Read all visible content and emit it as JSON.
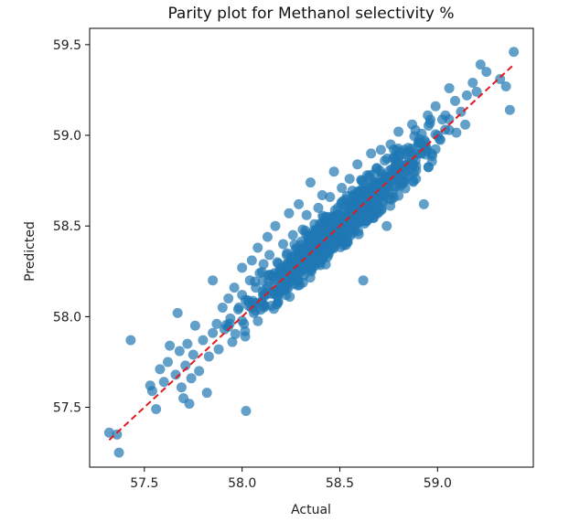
{
  "chart_data": {
    "type": "scatter",
    "title": "Parity plot for Methanol selectivity %",
    "xlabel": "Actual",
    "ylabel": "Predicted",
    "xlim": [
      57.22,
      59.49
    ],
    "ylim": [
      57.17,
      59.59
    ],
    "xticks": [
      57.5,
      58.0,
      58.5,
      59.0
    ],
    "xtick_labels": [
      "57.5",
      "58.0",
      "58.5",
      "59.0"
    ],
    "yticks": [
      57.5,
      58.0,
      58.5,
      59.0,
      59.5
    ],
    "ytick_labels": [
      "57.5",
      "58.0",
      "58.5",
      "59.0",
      "59.5"
    ],
    "grid": false,
    "legend": "none",
    "marker_color": "#1f77b4",
    "marker_opacity": 0.7,
    "parity_line": {
      "color": "#e31a1c",
      "style": "dashed",
      "from": [
        57.32,
        57.32
      ],
      "to": [
        59.39,
        59.39
      ]
    },
    "series": [
      {
        "points": [
          [
            57.32,
            57.36
          ],
          [
            57.36,
            57.35
          ],
          [
            57.37,
            57.25
          ],
          [
            57.43,
            57.87
          ],
          [
            57.53,
            57.62
          ],
          [
            57.54,
            57.59
          ],
          [
            57.56,
            57.49
          ],
          [
            57.58,
            57.71
          ],
          [
            57.6,
            57.64
          ],
          [
            57.62,
            57.75
          ],
          [
            57.63,
            57.84
          ],
          [
            57.66,
            57.68
          ],
          [
            57.67,
            58.02
          ],
          [
            57.68,
            57.81
          ],
          [
            57.69,
            57.61
          ],
          [
            57.7,
            57.55
          ],
          [
            57.71,
            57.73
          ],
          [
            57.72,
            57.85
          ],
          [
            57.73,
            57.52
          ],
          [
            57.74,
            57.66
          ],
          [
            57.75,
            57.79
          ],
          [
            57.76,
            57.95
          ],
          [
            57.78,
            57.7
          ],
          [
            57.8,
            57.87
          ],
          [
            57.82,
            57.58
          ],
          [
            57.83,
            57.78
          ],
          [
            57.85,
            57.91
          ],
          [
            57.85,
            58.2
          ],
          [
            57.87,
            57.96
          ],
          [
            57.88,
            57.82
          ],
          [
            57.9,
            58.05
          ],
          [
            57.91,
            57.93
          ],
          [
            57.93,
            58.1
          ],
          [
            57.94,
            57.99
          ],
          [
            57.95,
            57.86
          ],
          [
            57.96,
            58.16
          ],
          [
            57.98,
            58.04
          ],
          [
            58.0,
            58.12
          ],
          [
            58.0,
            58.27
          ],
          [
            58.01,
            57.96
          ],
          [
            58.02,
            57.48
          ],
          [
            58.03,
            58.09
          ],
          [
            58.04,
            58.2
          ],
          [
            58.05,
            58.31
          ],
          [
            58.06,
            58.02
          ],
          [
            58.07,
            58.16
          ],
          [
            58.08,
            58.38
          ],
          [
            58.09,
            58.24
          ],
          [
            58.1,
            58.08
          ],
          [
            58.11,
            58.29
          ],
          [
            58.12,
            58.15
          ],
          [
            58.13,
            58.44
          ],
          [
            58.14,
            58.34
          ],
          [
            58.15,
            58.06
          ],
          [
            58.16,
            58.22
          ],
          [
            58.17,
            58.5
          ],
          [
            58.18,
            58.3
          ],
          [
            58.19,
            58.13
          ],
          [
            58.2,
            58.27
          ],
          [
            58.21,
            58.4
          ],
          [
            58.22,
            58.19
          ],
          [
            58.23,
            58.35
          ],
          [
            58.24,
            58.57
          ],
          [
            58.25,
            58.3
          ],
          [
            58.26,
            58.45
          ],
          [
            58.27,
            58.18
          ],
          [
            58.28,
            58.38
          ],
          [
            58.29,
            58.62
          ],
          [
            58.3,
            58.25
          ],
          [
            58.31,
            58.48
          ],
          [
            58.32,
            58.36
          ],
          [
            58.33,
            58.56
          ],
          [
            58.34,
            58.42
          ],
          [
            58.35,
            58.74
          ],
          [
            58.36,
            58.28
          ],
          [
            58.37,
            58.51
          ],
          [
            58.38,
            58.39
          ],
          [
            58.39,
            58.6
          ],
          [
            58.4,
            58.45
          ],
          [
            58.41,
            58.67
          ],
          [
            58.42,
            58.34
          ],
          [
            58.43,
            58.55
          ],
          [
            58.44,
            58.46
          ],
          [
            58.45,
            58.66
          ],
          [
            58.46,
            58.53
          ],
          [
            58.47,
            58.8
          ],
          [
            58.48,
            58.4
          ],
          [
            58.49,
            58.6
          ],
          [
            58.5,
            58.5
          ],
          [
            58.51,
            58.71
          ],
          [
            58.52,
            58.43
          ],
          [
            58.53,
            58.62
          ],
          [
            58.54,
            58.54
          ],
          [
            58.55,
            58.76
          ],
          [
            58.56,
            58.47
          ],
          [
            58.57,
            58.67
          ],
          [
            58.58,
            58.58
          ],
          [
            58.59,
            58.84
          ],
          [
            58.6,
            58.52
          ],
          [
            58.61,
            58.7
          ],
          [
            58.62,
            58.2
          ],
          [
            58.63,
            58.62
          ],
          [
            58.64,
            58.78
          ],
          [
            58.65,
            58.56
          ],
          [
            58.66,
            58.9
          ],
          [
            58.67,
            58.69
          ],
          [
            58.68,
            58.6
          ],
          [
            58.69,
            58.82
          ],
          [
            58.7,
            58.72
          ],
          [
            58.71,
            58.92
          ],
          [
            58.72,
            58.64
          ],
          [
            58.73,
            58.86
          ],
          [
            58.74,
            58.5
          ],
          [
            58.75,
            58.77
          ],
          [
            58.76,
            58.95
          ],
          [
            58.77,
            58.68
          ],
          [
            58.78,
            58.88
          ],
          [
            58.79,
            58.8
          ],
          [
            58.8,
            59.02
          ],
          [
            58.81,
            58.72
          ],
          [
            58.83,
            58.92
          ],
          [
            58.85,
            58.84
          ],
          [
            58.87,
            59.06
          ],
          [
            58.89,
            58.76
          ],
          [
            58.91,
            58.96
          ],
          [
            58.93,
            58.62
          ],
          [
            58.95,
            59.11
          ],
          [
            58.97,
            58.9
          ],
          [
            58.99,
            59.16
          ],
          [
            59.01,
            58.98
          ],
          [
            59.04,
            59.11
          ],
          [
            59.06,
            59.26
          ],
          [
            59.09,
            59.19
          ],
          [
            59.12,
            59.13
          ],
          [
            59.15,
            59.22
          ],
          [
            59.18,
            59.29
          ],
          [
            59.2,
            59.24
          ],
          [
            59.22,
            59.39
          ],
          [
            59.25,
            59.35
          ],
          [
            59.32,
            59.31
          ],
          [
            59.35,
            59.27
          ],
          [
            59.37,
            59.14
          ],
          [
            59.39,
            59.46
          ]
        ]
      }
    ]
  }
}
